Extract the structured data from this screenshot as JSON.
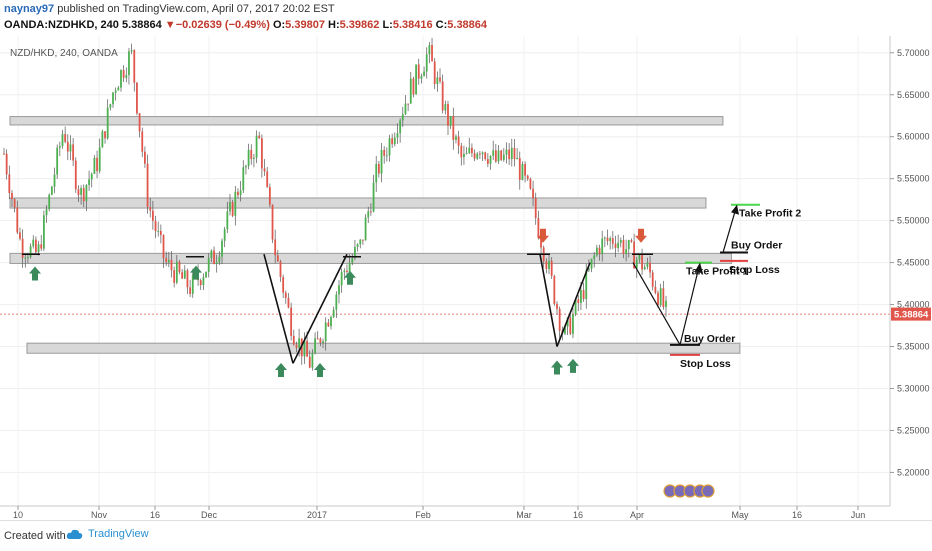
{
  "header": {
    "user": "naynay97",
    "published": " published on TradingView.com, April 07, 2017 20:02 EST",
    "symbol": "OANDA:NZDHKD, 240",
    "last": "5.38864",
    "change": "−0.02639 (−0.49%)",
    "open_label": "O:",
    "open": "5.39807",
    "high_label": "H:",
    "high": "5.39862",
    "low_label": "L:",
    "low": "5.38416",
    "close_label": "C:",
    "close": "5.38864"
  },
  "footer": {
    "created": "Created with",
    "brand": "TradingView"
  },
  "colors": {
    "up": "#4caf50",
    "down": "#e0564a",
    "zone_fill": "#d8d8d8",
    "zone_stroke": "#9a9a9a",
    "price_tag": "#e0564a",
    "arrow_up": "#3a8a5c",
    "arrow_down": "#d85a3a"
  },
  "chart_data": {
    "type": "candlestick",
    "title": "NZD/HKD, 240, OANDA",
    "ylim": [
      5.16,
      5.72
    ],
    "y_ticks": [
      "5.20000",
      "5.25000",
      "5.30000",
      "5.35000",
      "5.40000",
      "5.45000",
      "5.50000",
      "5.55000",
      "5.60000",
      "5.65000",
      "5.70000"
    ],
    "x_ticks": [
      "10",
      "Nov",
      "16",
      "Dec",
      "2017",
      "Feb",
      "Mar",
      "16",
      "Apr",
      "May",
      "16",
      "Jun"
    ],
    "last_price": "5.38864",
    "price_path": [
      [
        0.0,
        5.58
      ],
      [
        0.02,
        5.47
      ],
      [
        0.04,
        5.46
      ],
      [
        0.07,
        5.61
      ],
      [
        0.09,
        5.53
      ],
      [
        0.11,
        5.57
      ],
      [
        0.13,
        5.66
      ],
      [
        0.15,
        5.7
      ],
      [
        0.17,
        5.52
      ],
      [
        0.19,
        5.45
      ],
      [
        0.22,
        5.42
      ],
      [
        0.25,
        5.46
      ],
      [
        0.28,
        5.55
      ],
      [
        0.3,
        5.6
      ],
      [
        0.32,
        5.46
      ],
      [
        0.34,
        5.37
      ],
      [
        0.36,
        5.33
      ],
      [
        0.38,
        5.38
      ],
      [
        0.4,
        5.44
      ],
      [
        0.42,
        5.47
      ],
      [
        0.44,
        5.56
      ],
      [
        0.46,
        5.61
      ],
      [
        0.48,
        5.66
      ],
      [
        0.5,
        5.7
      ],
      [
        0.52,
        5.63
      ],
      [
        0.54,
        5.57
      ],
      [
        0.56,
        5.59
      ],
      [
        0.58,
        5.57
      ],
      [
        0.6,
        5.58
      ],
      [
        0.62,
        5.53
      ],
      [
        0.64,
        5.45
      ],
      [
        0.66,
        5.36
      ],
      [
        0.68,
        5.41
      ],
      [
        0.7,
        5.47
      ],
      [
        0.72,
        5.48
      ],
      [
        0.74,
        5.46
      ],
      [
        0.76,
        5.44
      ],
      [
        0.78,
        5.39
      ]
    ],
    "zones": [
      {
        "low": 5.614,
        "high": 5.624,
        "from": 0.0,
        "to": 0.84
      },
      {
        "low": 5.515,
        "high": 5.527,
        "from": 0.0,
        "to": 0.82
      },
      {
        "low": 5.449,
        "high": 5.461,
        "from": 0.0,
        "to": 0.85
      },
      {
        "low": 5.342,
        "high": 5.354,
        "from": 0.02,
        "to": 0.86
      }
    ],
    "annotations": [
      {
        "label": "Buy Order",
        "price": 5.352
      },
      {
        "label": "Stop Loss",
        "price": 5.34
      },
      {
        "label": "Take Profit 1",
        "price": 5.45
      },
      {
        "label": "Buy Order",
        "price": 5.462
      },
      {
        "label": "Stop Loss",
        "price": 5.452
      },
      {
        "label": "Take Profit 2",
        "price": 5.519
      }
    ]
  }
}
